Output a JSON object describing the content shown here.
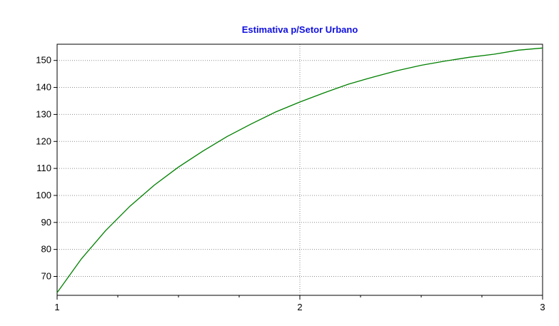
{
  "chart_data": {
    "type": "line",
    "title": "Estimativa p/Setor Urbano",
    "xlabel": "",
    "ylabel": "",
    "xlim": [
      1,
      3
    ],
    "ylim": [
      63,
      156
    ],
    "x_ticks": [
      "1",
      "2",
      "3"
    ],
    "y_ticks": [
      "70",
      "80",
      "90",
      "100",
      "110",
      "120",
      "130",
      "140",
      "150"
    ],
    "grid": true,
    "legend": "none",
    "series": [
      {
        "color": "#008000",
        "x": [
          1.0,
          1.1,
          1.2,
          1.3,
          1.4,
          1.5,
          1.6,
          1.7,
          1.8,
          1.9,
          2.0,
          2.1,
          2.2,
          2.3,
          2.4,
          2.5,
          2.6,
          2.7,
          2.8,
          2.9,
          3.0
        ],
        "y": [
          64.0,
          76.5,
          87.0,
          96.0,
          103.8,
          110.5,
          116.4,
          121.8,
          126.5,
          130.9,
          134.6,
          138.0,
          141.2,
          143.8,
          146.2,
          148.2,
          149.8,
          151.2,
          152.3,
          153.8,
          154.6
        ]
      }
    ]
  }
}
